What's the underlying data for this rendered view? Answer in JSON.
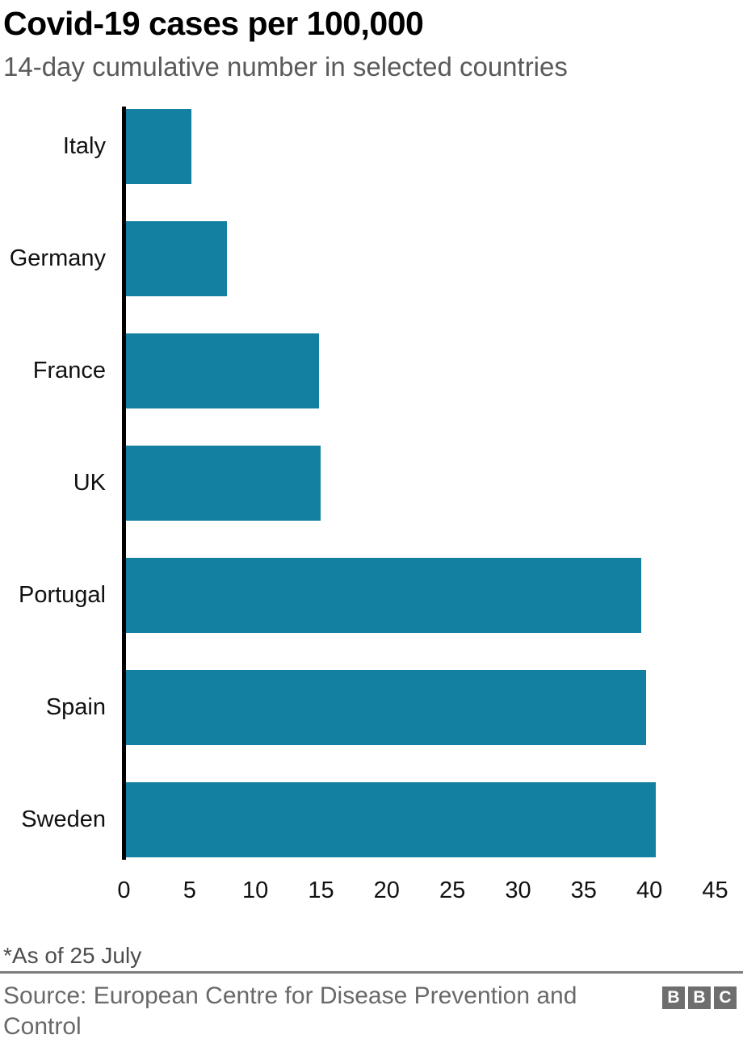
{
  "header": {
    "title": "Covid-19 cases per 100,000",
    "subtitle": "14-day cumulative number in selected countries"
  },
  "chart_data": {
    "type": "bar",
    "orientation": "horizontal",
    "title": "Covid-19 cases per 100,000",
    "subtitle": "14-day cumulative number in selected countries",
    "categories": [
      "Italy",
      "Germany",
      "France",
      "UK",
      "Portugal",
      "Spain",
      "Sweden"
    ],
    "values": [
      5.0,
      7.7,
      14.7,
      14.8,
      39.2,
      39.6,
      40.3
    ],
    "xlabel": "",
    "ylabel": "",
    "xlim": [
      0,
      45
    ],
    "x_ticks": [
      0,
      5,
      10,
      15,
      20,
      25,
      30,
      35,
      40,
      45
    ],
    "grid": false,
    "legend": false,
    "bar_color": "#1380a1",
    "axis_line_color": "#000000"
  },
  "footer": {
    "footnote": "*As of 25 July",
    "source": "Source: European Centre for Disease Prevention and Control",
    "logo_letters": [
      "B",
      "B",
      "C"
    ],
    "logo_block_color": "#6e6e6e"
  },
  "colors": {
    "bar_teal": "#1380a1",
    "subtitle_gray": "#5a5a5a",
    "source_gray": "#696969",
    "divider_gray": "#7d7d7d"
  }
}
